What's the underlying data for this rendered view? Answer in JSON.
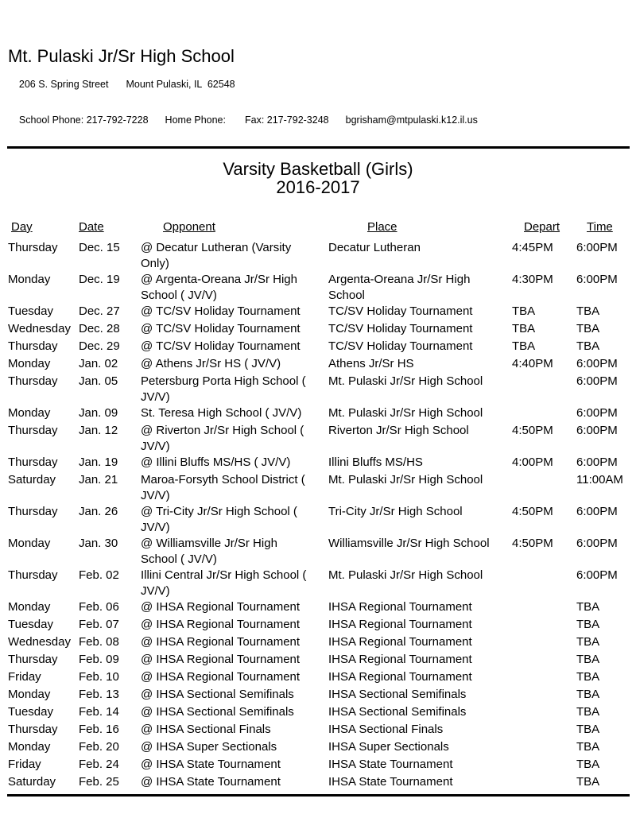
{
  "header": {
    "school_name": "Mt. Pulaski Jr/Sr High School",
    "address_street": "206 S. Spring Street",
    "address_city": "Mount Pulaski, IL  62548",
    "school_phone": "School Phone: 217-792-7228",
    "home_phone": "Home Phone:",
    "fax": "Fax: 217-792-3248",
    "email": "bgrisham@mtpulaski.k12.il.us"
  },
  "title": {
    "line1": "Varsity Basketball (Girls)",
    "line2": "2016-2017"
  },
  "schedule": {
    "columns": [
      "Day",
      "Date",
      "Opponent",
      "Place",
      "Depart",
      "Time"
    ],
    "rows": [
      {
        "day": "Thursday",
        "date": "Dec. 15",
        "opponent": "@ Decatur Lutheran (Varsity\nOnly)",
        "place": "Decatur Lutheran",
        "depart": "4:45PM",
        "time": "6:00PM"
      },
      {
        "day": "Monday",
        "date": "Dec. 19",
        "opponent": "@ Argenta-Oreana Jr/Sr High\nSchool ( JV/V)",
        "place": "Argenta-Oreana Jr/Sr High\nSchool",
        "depart": "4:30PM",
        "time": "6:00PM"
      },
      {
        "day": "Tuesday",
        "date": "Dec. 27",
        "opponent": "@ TC/SV Holiday Tournament",
        "place": "TC/SV Holiday Tournament",
        "depart": "TBA",
        "time": "TBA"
      },
      {
        "day": "Wednesday",
        "date": "Dec. 28",
        "opponent": "@ TC/SV Holiday Tournament",
        "place": "TC/SV Holiday Tournament",
        "depart": "TBA",
        "time": "TBA"
      },
      {
        "day": "Thursday",
        "date": "Dec. 29",
        "opponent": "@ TC/SV Holiday Tournament",
        "place": "TC/SV Holiday Tournament",
        "depart": "TBA",
        "time": "TBA"
      },
      {
        "day": "Monday",
        "date": "Jan. 02",
        "opponent": "@ Athens Jr/Sr HS ( JV/V)",
        "place": "Athens Jr/Sr HS",
        "depart": "4:40PM",
        "time": "6:00PM"
      },
      {
        "day": "Thursday",
        "date": "Jan. 05",
        "opponent": "Petersburg Porta High School (\nJV/V)",
        "place": "Mt. Pulaski Jr/Sr High School",
        "depart": "",
        "time": "6:00PM"
      },
      {
        "day": "Monday",
        "date": "Jan. 09",
        "opponent": "St. Teresa High School ( JV/V)",
        "place": "Mt. Pulaski Jr/Sr High School",
        "depart": "",
        "time": "6:00PM"
      },
      {
        "day": "Thursday",
        "date": "Jan. 12",
        "opponent": "@ Riverton Jr/Sr High School (\nJV/V)",
        "place": "Riverton Jr/Sr High School",
        "depart": "4:50PM",
        "time": "6:00PM"
      },
      {
        "day": "Thursday",
        "date": "Jan. 19",
        "opponent": "@ Illini Bluffs MS/HS ( JV/V)",
        "place": "Illini Bluffs MS/HS",
        "depart": "4:00PM",
        "time": "6:00PM"
      },
      {
        "day": "Saturday",
        "date": "Jan. 21",
        "opponent": "Maroa-Forsyth School District (\nJV/V)",
        "place": "Mt. Pulaski Jr/Sr High School",
        "depart": "",
        "time": "11:00AM"
      },
      {
        "day": "Thursday",
        "date": "Jan. 26",
        "opponent": "@ Tri-City Jr/Sr High School (\nJV/V)",
        "place": "Tri-City Jr/Sr High School",
        "depart": "4:50PM",
        "time": "6:00PM"
      },
      {
        "day": "Monday",
        "date": "Jan. 30",
        "opponent": "@ Williamsville Jr/Sr High\nSchool ( JV/V)",
        "place": "Williamsville Jr/Sr High School",
        "depart": "4:50PM",
        "time": "6:00PM"
      },
      {
        "day": "Thursday",
        "date": "Feb. 02",
        "opponent": "Illini Central Jr/Sr High School (\nJV/V)",
        "place": "Mt. Pulaski Jr/Sr High School",
        "depart": "",
        "time": "6:00PM"
      },
      {
        "day": "Monday",
        "date": "Feb. 06",
        "opponent": "@ IHSA Regional Tournament",
        "place": "IHSA Regional Tournament",
        "depart": "",
        "time": "TBA"
      },
      {
        "day": "Tuesday",
        "date": "Feb. 07",
        "opponent": "@ IHSA Regional Tournament",
        "place": "IHSA Regional Tournament",
        "depart": "",
        "time": "TBA"
      },
      {
        "day": "Wednesday",
        "date": "Feb. 08",
        "opponent": "@ IHSA Regional Tournament",
        "place": "IHSA Regional Tournament",
        "depart": "",
        "time": "TBA"
      },
      {
        "day": "Thursday",
        "date": "Feb. 09",
        "opponent": "@ IHSA Regional Tournament",
        "place": "IHSA Regional Tournament",
        "depart": "",
        "time": "TBA"
      },
      {
        "day": "Friday",
        "date": "Feb. 10",
        "opponent": "@ IHSA Regional Tournament",
        "place": "IHSA Regional Tournament",
        "depart": "",
        "time": "TBA"
      },
      {
        "day": "Monday",
        "date": "Feb. 13",
        "opponent": "@ IHSA Sectional Semifinals",
        "place": "IHSA Sectional Semifinals",
        "depart": "",
        "time": "TBA"
      },
      {
        "day": "Tuesday",
        "date": "Feb. 14",
        "opponent": "@ IHSA Sectional Semifinals",
        "place": "IHSA Sectional Semifinals",
        "depart": "",
        "time": "TBA"
      },
      {
        "day": "Thursday",
        "date": "Feb. 16",
        "opponent": "@ IHSA Sectional Finals",
        "place": "IHSA Sectional Finals",
        "depart": "",
        "time": "TBA"
      },
      {
        "day": "Monday",
        "date": "Feb. 20",
        "opponent": "@ IHSA Super Sectionals",
        "place": "IHSA Super Sectionals",
        "depart": "",
        "time": "TBA"
      },
      {
        "day": "Friday",
        "date": "Feb. 24",
        "opponent": "@ IHSA State Tournament",
        "place": "IHSA State Tournament",
        "depart": "",
        "time": "TBA"
      },
      {
        "day": "Saturday",
        "date": "Feb. 25",
        "opponent": "@ IHSA State Tournament",
        "place": "IHSA State Tournament",
        "depart": "",
        "time": "TBA"
      }
    ]
  }
}
